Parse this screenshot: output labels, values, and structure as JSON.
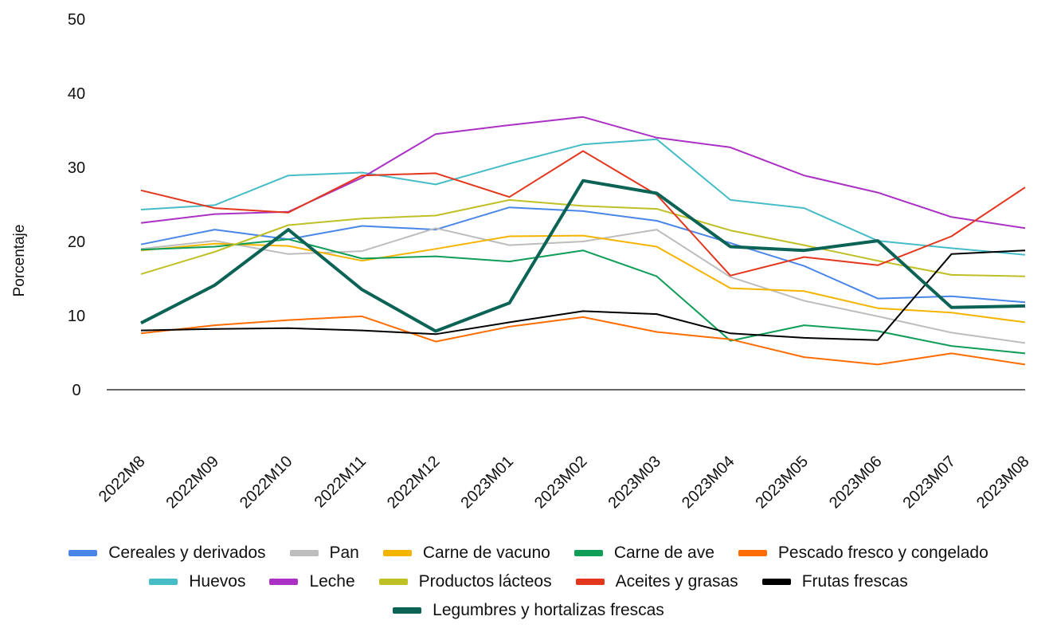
{
  "chart_data": {
    "type": "line",
    "title": "",
    "xlabel": "",
    "ylabel": "Porcentaje",
    "ylim": [
      0,
      50
    ],
    "yticks": [
      0,
      10,
      20,
      30,
      40,
      50
    ],
    "grid": false,
    "legend_position": "bottom",
    "categories": [
      "2022M8",
      "2022M09",
      "2022M10",
      "2022M11",
      "2022M12",
      "2023M01",
      "2023M02",
      "2023M03",
      "2023M04",
      "2023M05",
      "2023M06",
      "2023M07",
      "2023M08"
    ],
    "series": [
      {
        "name": "Cereales y derivados",
        "color": "#4a86e8",
        "values": [
          19.6,
          21.6,
          20.3,
          22.1,
          21.6,
          24.6,
          24.1,
          22.8,
          19.8,
          16.7,
          12.3,
          12.6,
          11.8
        ]
      },
      {
        "name": "Pan",
        "color": "#bdbdbd",
        "values": [
          19.0,
          20.1,
          18.3,
          18.7,
          21.8,
          19.5,
          20.0,
          21.6,
          15.2,
          12.0,
          9.9,
          7.7,
          6.3
        ]
      },
      {
        "name": "Carne de vacuno",
        "color": "#f4b400",
        "values": [
          18.8,
          19.7,
          19.4,
          17.4,
          19.0,
          20.7,
          20.8,
          19.3,
          13.7,
          13.3,
          11.0,
          10.4,
          9.1
        ]
      },
      {
        "name": "Carne de ave",
        "color": "#0f9d58",
        "values": [
          18.9,
          19.3,
          20.3,
          17.7,
          18.0,
          17.3,
          18.8,
          15.3,
          6.6,
          8.7,
          7.9,
          5.9,
          4.9
        ]
      },
      {
        "name": "Pescado fresco y congelado",
        "color": "#ff6d01",
        "values": [
          7.6,
          8.7,
          9.4,
          9.9,
          6.5,
          8.5,
          9.8,
          7.8,
          6.8,
          4.4,
          3.4,
          4.9,
          3.4
        ]
      },
      {
        "name": "Huevos",
        "color": "#46bdc6",
        "values": [
          24.3,
          24.9,
          28.9,
          29.3,
          27.7,
          30.5,
          33.1,
          33.8,
          25.6,
          24.5,
          20.1,
          19.1,
          18.2
        ]
      },
      {
        "name": "Leche",
        "color": "#ab30c4",
        "values": [
          22.5,
          23.7,
          24.0,
          28.6,
          34.5,
          35.7,
          36.8,
          34.0,
          32.7,
          28.9,
          26.6,
          23.3,
          21.8
        ]
      },
      {
        "name": "Productos lácteos",
        "color": "#bfbf26",
        "values": [
          15.6,
          18.6,
          22.2,
          23.1,
          23.5,
          25.6,
          24.8,
          24.4,
          21.5,
          19.5,
          17.4,
          15.5,
          15.3
        ]
      },
      {
        "name": "Aceites y grasas",
        "color": "#e2371d",
        "values": [
          26.9,
          24.5,
          23.9,
          28.9,
          29.2,
          26.0,
          32.2,
          26.3,
          15.4,
          17.9,
          16.8,
          20.7,
          27.3
        ]
      },
      {
        "name": "Frutas frescas",
        "color": "#000000",
        "values": [
          8.0,
          8.2,
          8.3,
          8.0,
          7.5,
          9.1,
          10.6,
          10.2,
          7.6,
          7.0,
          6.7,
          18.3,
          18.8
        ]
      },
      {
        "name": "Legumbres y hortalizas frescas",
        "color": "#0b6355",
        "values": [
          9.0,
          14.1,
          21.6,
          13.5,
          7.9,
          11.7,
          28.2,
          26.5,
          19.3,
          18.8,
          20.1,
          11.1,
          11.3
        ]
      }
    ]
  }
}
